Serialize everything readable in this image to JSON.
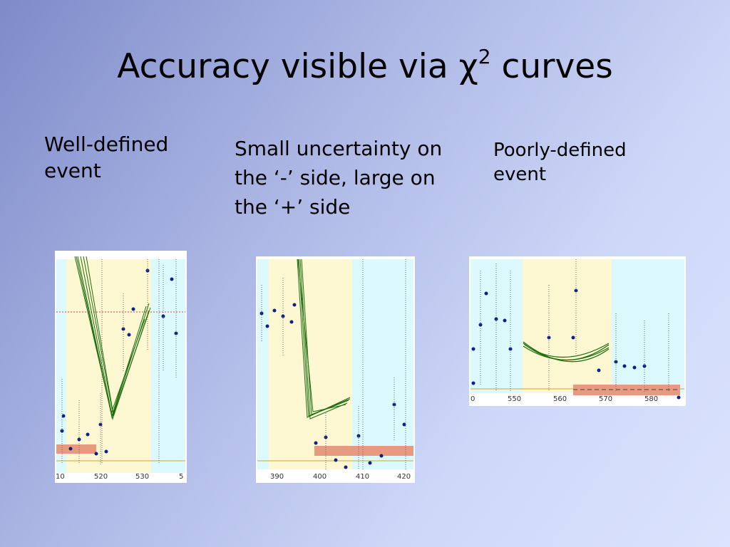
{
  "title": {
    "text": "Accuracy visible via χ",
    "superscript": "2",
    "text_after": " curves"
  },
  "columns": [
    {
      "caption": "Well-defined event",
      "ticks": [
        "10",
        "520",
        "530",
        "5"
      ]
    },
    {
      "caption": "Small uncertainty on the ‘-’ side, large on the ‘+’ side",
      "ticks": [
        "390",
        "400",
        "410",
        "420"
      ]
    },
    {
      "caption": "Poorly-defined event",
      "ticks": [
        "0",
        "550",
        "560",
        "570",
        "580"
      ]
    }
  ]
}
